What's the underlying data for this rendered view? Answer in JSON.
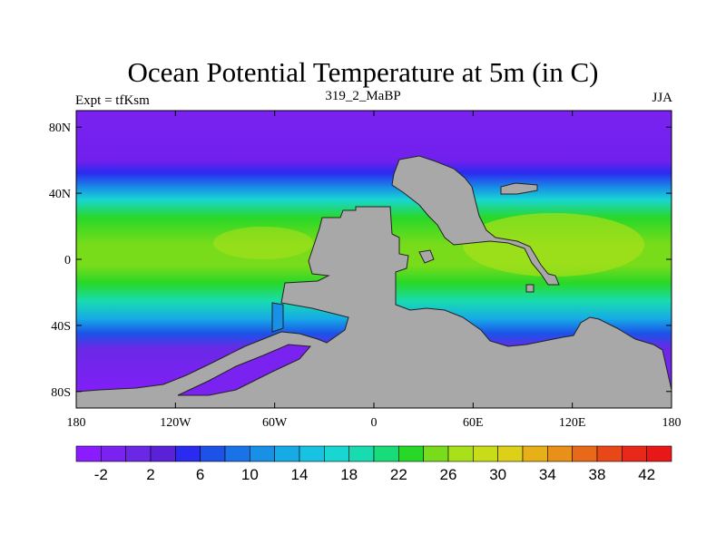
{
  "title": "Ocean Potential Temperature at 5m (in C)",
  "subtitle_left": "Expt = tfKsm",
  "subtitle_center": "319_2_MaBP",
  "subtitle_right": "JJA",
  "map": {
    "land_color": "#a8a8a8",
    "lon_range": [
      -180,
      180
    ],
    "lat_range": [
      -90,
      90
    ],
    "lon_ticks": [
      {
        "value": -180,
        "label": "180"
      },
      {
        "value": -120,
        "label": "120W"
      },
      {
        "value": -60,
        "label": "60W"
      },
      {
        "value": 0,
        "label": "0"
      },
      {
        "value": 60,
        "label": "60E"
      },
      {
        "value": 120,
        "label": "120E"
      },
      {
        "value": 180,
        "label": "180"
      }
    ],
    "lat_ticks": [
      {
        "value": 80,
        "label": "80N"
      },
      {
        "value": 40,
        "label": "40N"
      },
      {
        "value": 0,
        "label": "0"
      },
      {
        "value": -40,
        "label": "40S"
      },
      {
        "value": -80,
        "label": "80S"
      }
    ]
  },
  "colorbar": {
    "colors": [
      "#8a1cff",
      "#7a22f0",
      "#6a28e6",
      "#5a22d8",
      "#2a2af0",
      "#1c52e8",
      "#1a72e8",
      "#1890e6",
      "#16aae6",
      "#18c2e2",
      "#18d6d2",
      "#18dcb0",
      "#18dc7a",
      "#28d828",
      "#78dc1a",
      "#a8e01a",
      "#c8dc18",
      "#dcd018",
      "#e8b018",
      "#e89018",
      "#e86a18",
      "#e84818",
      "#e82818",
      "#e81818"
    ],
    "labels": [
      "-2",
      "2",
      "6",
      "10",
      "14",
      "18",
      "22",
      "26",
      "30",
      "34",
      "38",
      "42"
    ]
  }
}
